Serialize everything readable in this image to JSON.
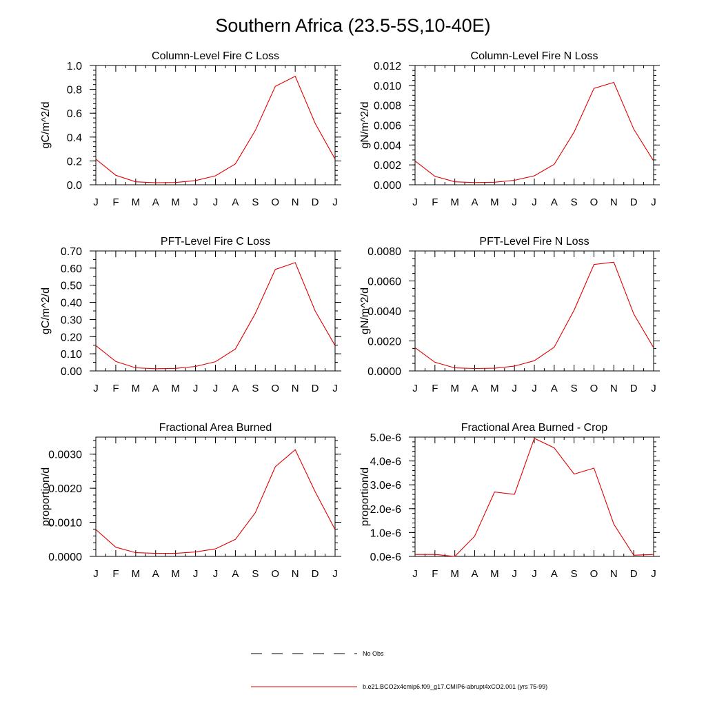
{
  "figure": {
    "title": "Southern Africa (23.5-5S,10-40E)",
    "legend": [
      {
        "label": "No Obs",
        "style": "dashed",
        "color": "#000000"
      },
      {
        "label": "b.e21.BCO2x4cmip6.f09_g17.CMIP6-abrupt4xCO2.001 (yrs 75-99)",
        "style": "solid",
        "color": "#e00000"
      }
    ]
  },
  "chart_data": [
    {
      "type": "line",
      "title": "Column-Level Fire C Loss",
      "ylabel": "gC/m^2/d",
      "categories": [
        "J",
        "F",
        "M",
        "A",
        "M",
        "J",
        "J",
        "A",
        "S",
        "O",
        "N",
        "D",
        "J"
      ],
      "ylim": [
        0,
        1.0
      ],
      "yticks": [
        "0.0",
        "0.2",
        "0.4",
        "0.6",
        "0.8",
        "1.0"
      ],
      "yminor": 4,
      "series": [
        {
          "name": "b.e21.BCO2x4cmip6.f09_g17.CMIP6-abrupt4xCO2.001 (yrs 75-99)",
          "color": "#e00000",
          "values": [
            0.215,
            0.08,
            0.025,
            0.017,
            0.019,
            0.035,
            0.075,
            0.175,
            0.455,
            0.825,
            0.91,
            0.515,
            0.215
          ]
        }
      ]
    },
    {
      "type": "line",
      "title": "Column-Level Fire N Loss",
      "ylabel": "gN/m^2/d",
      "categories": [
        "J",
        "F",
        "M",
        "A",
        "M",
        "J",
        "J",
        "A",
        "S",
        "O",
        "N",
        "D",
        "J"
      ],
      "ylim": [
        0,
        0.012
      ],
      "yticks": [
        "0.000",
        "0.002",
        "0.004",
        "0.006",
        "0.008",
        "0.010",
        "0.012"
      ],
      "yminor": 3,
      "series": [
        {
          "name": "b.e21.BCO2x4cmip6.f09_g17.CMIP6-abrupt4xCO2.001 (yrs 75-99)",
          "color": "#e00000",
          "values": [
            0.0024,
            0.00085,
            0.0003,
            0.00022,
            0.00026,
            0.00045,
            0.0009,
            0.00205,
            0.0053,
            0.0097,
            0.0103,
            0.0056,
            0.0024
          ]
        }
      ]
    },
    {
      "type": "line",
      "title": "PFT-Level Fire C Loss",
      "ylabel": "gC/m^2/d",
      "categories": [
        "J",
        "F",
        "M",
        "A",
        "M",
        "J",
        "J",
        "A",
        "S",
        "O",
        "N",
        "D",
        "J"
      ],
      "ylim": [
        0,
        0.7
      ],
      "yticks": [
        "0.00",
        "0.10",
        "0.20",
        "0.30",
        "0.40",
        "0.50",
        "0.60",
        "0.70"
      ],
      "yminor": 1,
      "series": [
        {
          "name": "b.e21.BCO2x4cmip6.f09_g17.CMIP6-abrupt4xCO2.001 (yrs 75-99)",
          "color": "#e00000",
          "values": [
            0.148,
            0.055,
            0.018,
            0.013,
            0.015,
            0.026,
            0.054,
            0.128,
            0.335,
            0.592,
            0.632,
            0.35,
            0.148
          ]
        }
      ]
    },
    {
      "type": "line",
      "title": "PFT-Level Fire N Loss",
      "ylabel": "gN/m^2/d",
      "categories": [
        "J",
        "F",
        "M",
        "A",
        "M",
        "J",
        "J",
        "A",
        "S",
        "O",
        "N",
        "D",
        "J"
      ],
      "ylim": [
        0,
        0.008
      ],
      "yticks": [
        "0.0000",
        "0.0020",
        "0.0040",
        "0.0060",
        "0.0080"
      ],
      "yminor": 3,
      "series": [
        {
          "name": "b.e21.BCO2x4cmip6.f09_g17.CMIP6-abrupt4xCO2.001 (yrs 75-99)",
          "color": "#e00000",
          "values": [
            0.00155,
            0.00058,
            0.0002,
            0.00016,
            0.00018,
            0.00032,
            0.00068,
            0.00158,
            0.00405,
            0.0071,
            0.00725,
            0.0038,
            0.00155
          ]
        }
      ]
    },
    {
      "type": "line",
      "title": "Fractional Area Burned",
      "ylabel": "proportion/d",
      "categories": [
        "J",
        "F",
        "M",
        "A",
        "M",
        "J",
        "J",
        "A",
        "S",
        "O",
        "N",
        "D",
        "J"
      ],
      "ylim": [
        0,
        0.0035
      ],
      "yticks": [
        "0.0000",
        "0.0010",
        "0.0020",
        "0.0030"
      ],
      "yminor": 4,
      "series": [
        {
          "name": "b.e21.BCO2x4cmip6.f09_g17.CMIP6-abrupt4xCO2.001 (yrs 75-99)",
          "color": "#e00000",
          "values": [
            0.00079,
            0.00027,
            0.00011,
            9e-05,
            9e-05,
            0.00013,
            0.00022,
            0.0005,
            0.00128,
            0.00263,
            0.00313,
            0.0019,
            0.00079
          ]
        }
      ]
    },
    {
      "type": "line",
      "title": "Fractional Area Burned - Crop",
      "ylabel": "proportion/d",
      "categories": [
        "J",
        "F",
        "M",
        "A",
        "M",
        "J",
        "J",
        "A",
        "S",
        "O",
        "N",
        "D",
        "J"
      ],
      "ylim": [
        0,
        5e-06
      ],
      "yticks": [
        "0.0e-6",
        "1.0e-6",
        "2.0e-6",
        "3.0e-6",
        "4.0e-6",
        "5.0e-6"
      ],
      "yminor": 4,
      "series": [
        {
          "name": "b.e21.BCO2x4cmip6.f09_g17.CMIP6-abrupt4xCO2.001 (yrs 75-99)",
          "color": "#e00000",
          "values": [
            8e-08,
            8e-08,
            0.0,
            8.5e-07,
            2.7e-06,
            2.6e-06,
            4.95e-06,
            4.55e-06,
            3.45e-06,
            3.7e-06,
            1.35e-06,
            5e-08,
            8e-08
          ]
        }
      ]
    }
  ]
}
